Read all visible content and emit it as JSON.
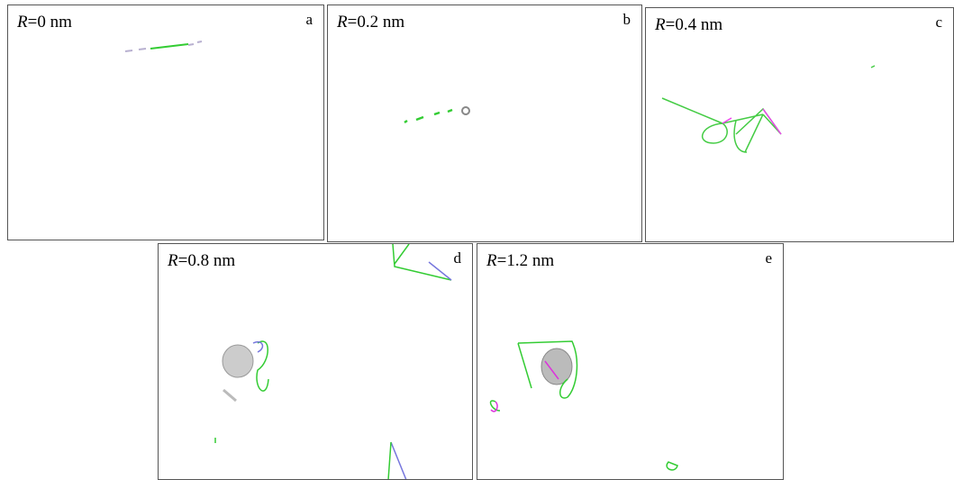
{
  "panels": [
    {
      "variable": "R",
      "text": "=0 nm",
      "letter": "a"
    },
    {
      "variable": "R",
      "text": "=0.2 nm",
      "letter": "b"
    },
    {
      "variable": "R",
      "text": "=0.4 nm",
      "letter": "c"
    },
    {
      "variable": "R",
      "text": "=0.8 nm",
      "letter": "d"
    },
    {
      "variable": "R",
      "text": "=1.2 nm",
      "letter": "e"
    }
  ]
}
